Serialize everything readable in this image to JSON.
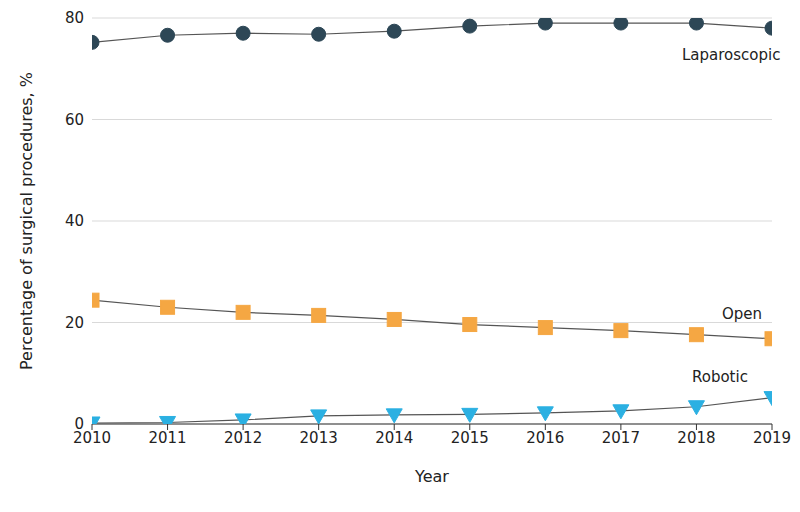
{
  "chart_data": {
    "type": "line",
    "x": [
      2010,
      2011,
      2012,
      2013,
      2014,
      2015,
      2016,
      2017,
      2018,
      2019
    ],
    "x_label": "Year",
    "y_label": "Percentage of surgical procedures, %",
    "xlim": [
      2010,
      2019
    ],
    "xticks": [
      2010,
      2011,
      2012,
      2013,
      2014,
      2015,
      2016,
      2017,
      2018,
      2019
    ],
    "ylim": [
      0,
      80
    ],
    "yticks": [
      0,
      20,
      40,
      60,
      80
    ],
    "grid": true,
    "series": [
      {
        "name": "Laparoscopic",
        "color": "#2d4756",
        "marker": "circle",
        "values": [
          75.2,
          76.6,
          77.0,
          76.8,
          77.4,
          78.4,
          79.0,
          79.0,
          79.0,
          78.0
        ]
      },
      {
        "name": "Open",
        "color": "#f5a743",
        "marker": "square",
        "values": [
          24.4,
          23.0,
          22.0,
          21.4,
          20.6,
          19.6,
          19.0,
          18.4,
          17.6,
          16.8
        ]
      },
      {
        "name": "Robotic",
        "color": "#2bb0e2",
        "marker": "triangle-down",
        "values": [
          0.2,
          0.3,
          0.8,
          1.6,
          1.8,
          1.9,
          2.2,
          2.6,
          3.4,
          5.2
        ]
      }
    ]
  }
}
